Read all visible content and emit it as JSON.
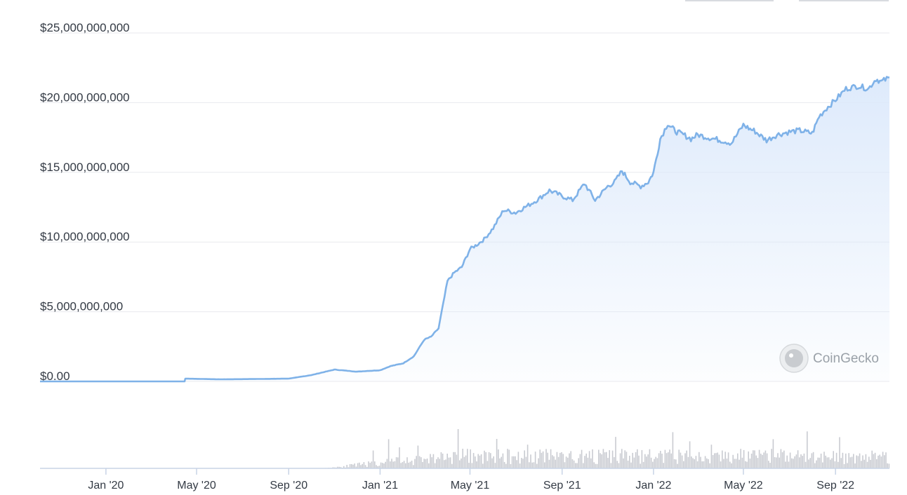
{
  "watermark": {
    "text": "CoinGecko"
  },
  "chart_data": {
    "type": "area",
    "title": "",
    "xlabel": "",
    "ylabel": "",
    "ylim": [
      0,
      25000000000
    ],
    "yticks": [
      {
        "value": 0,
        "label": "$0.00"
      },
      {
        "value": 5000000000,
        "label": "$5,000,000,000"
      },
      {
        "value": 10000000000,
        "label": "$10,000,000,000"
      },
      {
        "value": 15000000000,
        "label": "$15,000,000,000"
      },
      {
        "value": 20000000000,
        "label": "$20,000,000,000"
      },
      {
        "value": 25000000000,
        "label": "$25,000,000,000"
      }
    ],
    "xlim": [
      "2019-10-05",
      "2022-11-12"
    ],
    "xticks": [
      {
        "date": "2020-01-01",
        "label": "Jan '20"
      },
      {
        "date": "2020-05-01",
        "label": "May '20"
      },
      {
        "date": "2020-09-01",
        "label": "Sep '20"
      },
      {
        "date": "2021-01-01",
        "label": "Jan '21"
      },
      {
        "date": "2021-05-01",
        "label": "May '21"
      },
      {
        "date": "2021-09-01",
        "label": "Sep '21"
      },
      {
        "date": "2022-01-01",
        "label": "Jan '22"
      },
      {
        "date": "2022-05-01",
        "label": "May '22"
      },
      {
        "date": "2022-09-01",
        "label": "Sep '22"
      }
    ],
    "grid": true,
    "legend": "none",
    "colors": {
      "line": "#7fb2e8",
      "area_top": "#dce9fb",
      "volume": "#c9cbd1",
      "axis": "#c8d4e6"
    },
    "series": [
      {
        "values_x": [
          "2019-10-05",
          "2020-04-15",
          "2020-04-16",
          "2020-06-01",
          "2020-08-01",
          "2020-09-01",
          "2020-10-01",
          "2020-11-01",
          "2020-12-01",
          "2020-12-15",
          "2021-01-01",
          "2021-01-15",
          "2021-02-01",
          "2021-02-15",
          "2021-03-01",
          "2021-03-10",
          "2021-03-20",
          "2021-04-01",
          "2021-04-10",
          "2021-04-20",
          "2021-05-01",
          "2021-05-10",
          "2021-05-20",
          "2021-06-01",
          "2021-06-15",
          "2021-07-01",
          "2021-07-10",
          "2021-07-20",
          "2021-08-01",
          "2021-08-15",
          "2021-09-01",
          "2021-09-15",
          "2021-10-01",
          "2021-10-15",
          "2021-11-01",
          "2021-11-10",
          "2021-11-20",
          "2021-12-01",
          "2021-12-15",
          "2021-12-25",
          "2022-01-01",
          "2022-01-10",
          "2022-01-20",
          "2022-01-25",
          "2022-02-01",
          "2022-02-10",
          "2022-02-20",
          "2022-03-01",
          "2022-03-15",
          "2022-04-01",
          "2022-04-15",
          "2022-05-01",
          "2022-05-10",
          "2022-05-15",
          "2022-06-01",
          "2022-06-15",
          "2022-07-01",
          "2022-07-15",
          "2022-08-01",
          "2022-08-10",
          "2022-08-20",
          "2022-09-01",
          "2022-09-15",
          "2022-10-01",
          "2022-10-15",
          "2022-10-25",
          "2022-11-01",
          "2022-11-12"
        ],
        "values": [
          0,
          0,
          200000000,
          150000000,
          180000000,
          200000000,
          450000000,
          850000000,
          700000000,
          750000000,
          800000000,
          1100000000,
          1300000000,
          1800000000,
          3000000000,
          3200000000,
          3800000000,
          7200000000,
          7800000000,
          8200000000,
          9500000000,
          9800000000,
          10200000000,
          11000000000,
          12300000000,
          12100000000,
          12400000000,
          12700000000,
          13100000000,
          13700000000,
          13300000000,
          13000000000,
          14200000000,
          13000000000,
          14000000000,
          14300000000,
          15100000000,
          14300000000,
          14000000000,
          14300000000,
          15000000000,
          17400000000,
          18500000000,
          18200000000,
          17900000000,
          17700000000,
          17400000000,
          17700000000,
          17500000000,
          17300000000,
          17100000000,
          18400000000,
          18100000000,
          18000000000,
          17300000000,
          17700000000,
          17900000000,
          18000000000,
          17800000000,
          19000000000,
          19600000000,
          20200000000,
          21000000000,
          21200000000,
          21000000000,
          21700000000,
          21500000000,
          21800000000
        ]
      }
    ]
  }
}
